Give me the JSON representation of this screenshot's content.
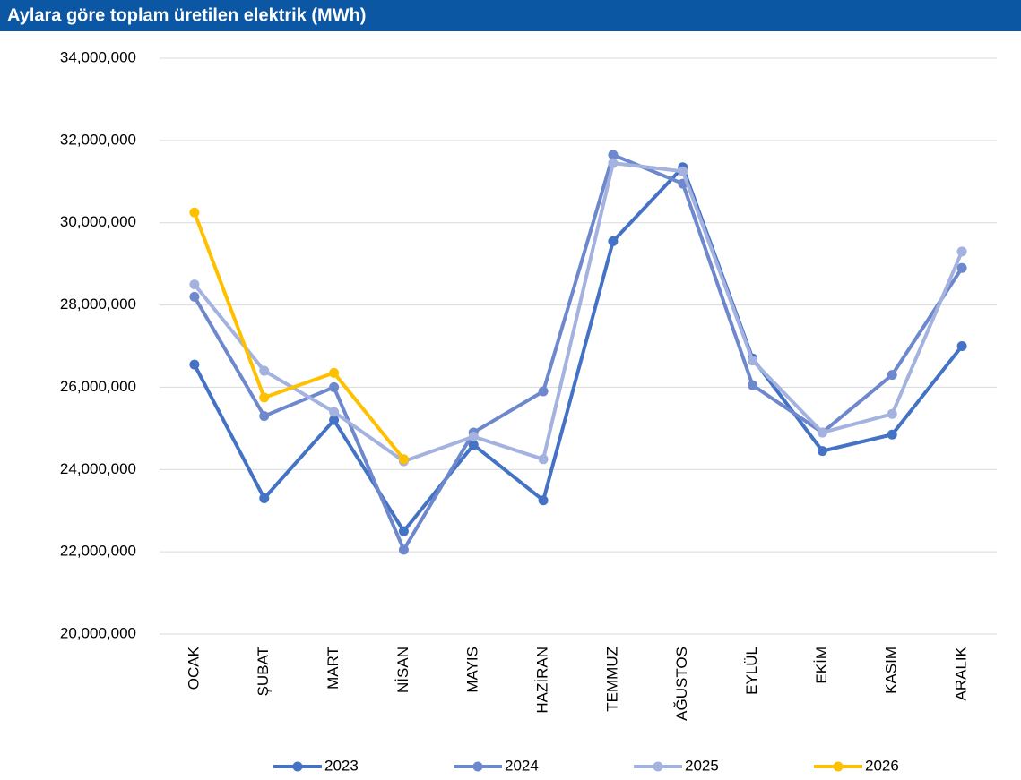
{
  "chart_data": {
    "type": "line",
    "title": "Aylara göre toplam üretilen elektrik (MWh)",
    "categories": [
      "OCAK",
      "ŞUBAT",
      "MART",
      "NİSAN",
      "MAYIS",
      "HAZİRAN",
      "TEMMUZ",
      "AĞUSTOS",
      "EYLÜL",
      "EKİM",
      "KASIM",
      "ARALIK"
    ],
    "series": [
      {
        "name": "2023",
        "color": "#4472c4",
        "values": [
          26550000,
          23300000,
          25200000,
          22500000,
          24600000,
          23250000,
          29550000,
          31350000,
          26700000,
          24450000,
          24850000,
          27000000
        ]
      },
      {
        "name": "2024",
        "color": "#6d88cc",
        "values": [
          28200000,
          25300000,
          26000000,
          22050000,
          24900000,
          25900000,
          31650000,
          30950000,
          26050000,
          24900000,
          26300000,
          28900000
        ]
      },
      {
        "name": "2025",
        "color": "#a3b2df",
        "values": [
          28500000,
          26400000,
          25400000,
          24200000,
          24800000,
          24250000,
          31450000,
          31250000,
          26650000,
          24900000,
          25350000,
          29300000
        ]
      },
      {
        "name": "2026",
        "color": "#ffc000",
        "values": [
          30250000,
          25750000,
          26350000,
          24250000,
          null,
          null,
          null,
          null,
          null,
          null,
          null,
          null
        ]
      }
    ],
    "ylim": [
      20000000,
      34000000
    ],
    "yticks": [
      {
        "value": 20000000,
        "label": "20,000,000"
      },
      {
        "value": 22000000,
        "label": "22,000,000"
      },
      {
        "value": 24000000,
        "label": "24,000,000"
      },
      {
        "value": 26000000,
        "label": "26,000,000"
      },
      {
        "value": 28000000,
        "label": "28,000,000"
      },
      {
        "value": 30000000,
        "label": "30,000,000"
      },
      {
        "value": 32000000,
        "label": "32,000,000"
      },
      {
        "value": 34000000,
        "label": "34,000,000"
      }
    ],
    "grid": true,
    "legend": "bottom"
  }
}
